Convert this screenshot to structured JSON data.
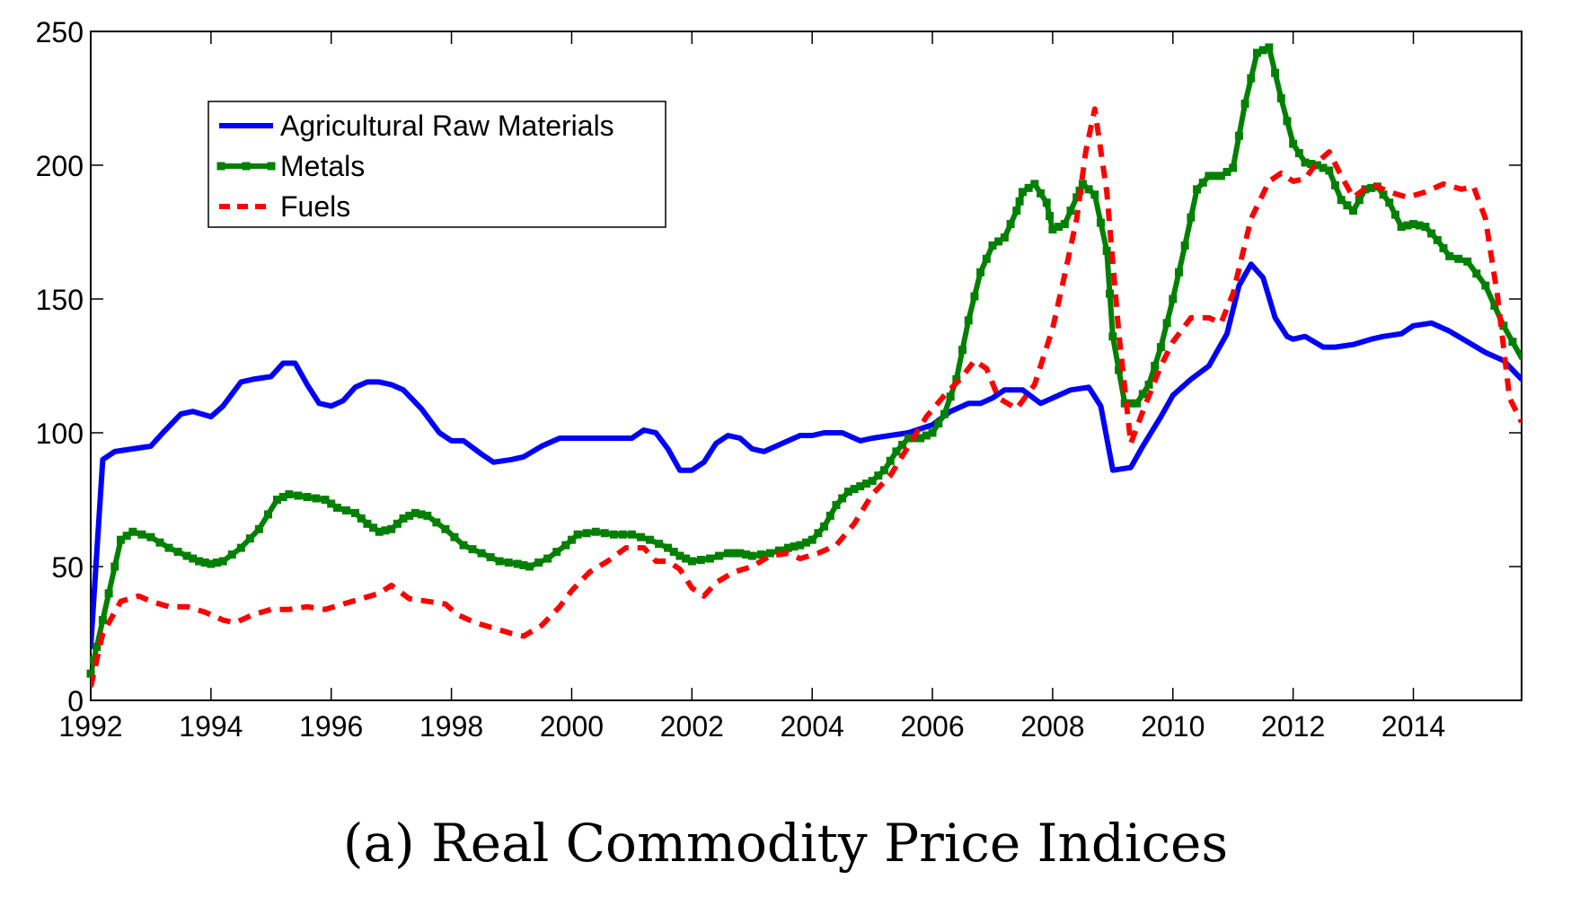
{
  "caption": "(a) Real Commodity Price Indices",
  "chart_data": {
    "type": "line",
    "xlim": [
      1992,
      2015.8
    ],
    "ylim": [
      0,
      250
    ],
    "grid": false,
    "legend_position": "top-left",
    "x_ticks": [
      "1992",
      "1994",
      "1996",
      "1998",
      "2000",
      "2002",
      "2004",
      "2006",
      "2008",
      "2010",
      "2012",
      "2014"
    ],
    "y_ticks": [
      "0",
      "50",
      "100",
      "150",
      "200",
      "250"
    ],
    "series": [
      {
        "name": "Agricultural Raw Materials",
        "color": "#0000ff",
        "style": "solid",
        "x": [
          1992.0,
          1992.2,
          1992.4,
          1992.7,
          1993.0,
          1993.2,
          1993.5,
          1993.7,
          1994.0,
          1994.2,
          1994.5,
          1994.7,
          1995.0,
          1995.2,
          1995.4,
          1995.6,
          1995.8,
          1996.0,
          1996.2,
          1996.4,
          1996.6,
          1996.8,
          1997.0,
          1997.2,
          1997.5,
          1997.8,
          1998.0,
          1998.2,
          1998.5,
          1998.7,
          1999.0,
          1999.2,
          1999.5,
          1999.8,
          2000.0,
          2000.5,
          2001.0,
          2001.2,
          2001.4,
          2001.6,
          2001.8,
          2002.0,
          2002.2,
          2002.4,
          2002.6,
          2002.8,
          2003.0,
          2003.2,
          2003.5,
          2003.8,
          2004.0,
          2004.2,
          2004.5,
          2004.8,
          2005.0,
          2005.3,
          2005.6,
          2006.0,
          2006.3,
          2006.6,
          2006.8,
          2007.0,
          2007.2,
          2007.5,
          2007.8,
          2008.0,
          2008.3,
          2008.6,
          2008.8,
          2009.0,
          2009.3,
          2009.5,
          2009.8,
          2010.0,
          2010.3,
          2010.6,
          2010.9,
          2011.1,
          2011.3,
          2011.5,
          2011.7,
          2011.9,
          2012.0,
          2012.2,
          2012.5,
          2012.7,
          2013.0,
          2013.3,
          2013.5,
          2013.8,
          2014.0,
          2014.3,
          2014.6,
          2014.9,
          2015.2,
          2015.5,
          2015.8
        ],
        "y": [
          20,
          90,
          93,
          94,
          95,
          100,
          107,
          108,
          106,
          110,
          119,
          120,
          121,
          126,
          126,
          118,
          111,
          110,
          112,
          117,
          119,
          119,
          118,
          116,
          109,
          100,
          97,
          97,
          92,
          89,
          90,
          91,
          95,
          98,
          98,
          98,
          98,
          101,
          100,
          94,
          86,
          86,
          89,
          96,
          99,
          98,
          94,
          93,
          96,
          99,
          99,
          100,
          100,
          97,
          98,
          99,
          100,
          103,
          108,
          111,
          111,
          113,
          116,
          116,
          111,
          113,
          116,
          117,
          110,
          86,
          87,
          95,
          106,
          114,
          120,
          125,
          137,
          155,
          163,
          158,
          143,
          136,
          135,
          136,
          132,
          132,
          133,
          135,
          136,
          137,
          140,
          141,
          138,
          134,
          130,
          127,
          120
        ]
      },
      {
        "name": "Metals",
        "color": "#008000",
        "style": "solid-markers",
        "x": [
          1992.0,
          1992.1,
          1992.3,
          1992.5,
          1992.7,
          1993.0,
          1993.3,
          1993.6,
          1993.8,
          1994.0,
          1994.2,
          1994.5,
          1994.8,
          1995.1,
          1995.3,
          1995.6,
          1995.9,
          1996.1,
          1996.4,
          1996.6,
          1996.8,
          1997.0,
          1997.2,
          1997.4,
          1997.6,
          1997.9,
          1998.2,
          1998.5,
          1998.8,
          1999.1,
          1999.3,
          1999.6,
          1999.9,
          2000.1,
          2000.4,
          2000.7,
          2001.0,
          2001.3,
          2001.6,
          2001.8,
          2002.0,
          2002.3,
          2002.6,
          2002.8,
          2003.0,
          2003.3,
          2003.6,
          2003.8,
          2004.0,
          2004.2,
          2004.4,
          2004.6,
          2004.8,
          2005.0,
          2005.2,
          2005.4,
          2005.6,
          2005.8,
          2006.0,
          2006.2,
          2006.4,
          2006.6,
          2006.8,
          2007.0,
          2007.2,
          2007.4,
          2007.5,
          2007.7,
          2007.9,
          2008.0,
          2008.2,
          2008.4,
          2008.5,
          2008.7,
          2008.9,
          2009.0,
          2009.2,
          2009.4,
          2009.6,
          2009.8,
          2010.0,
          2010.2,
          2010.4,
          2010.6,
          2010.8,
          2011.0,
          2011.2,
          2011.4,
          2011.6,
          2011.8,
          2012.0,
          2012.2,
          2012.4,
          2012.6,
          2012.8,
          2013.0,
          2013.2,
          2013.4,
          2013.6,
          2013.8,
          2014.0,
          2014.2,
          2014.4,
          2014.6,
          2014.9,
          2015.2,
          2015.5,
          2015.8
        ],
        "y": [
          10,
          20,
          40,
          60,
          63,
          61,
          57,
          54,
          52,
          51,
          52,
          57,
          64,
          75,
          77,
          76,
          75,
          72,
          70,
          66,
          63,
          64,
          68,
          70,
          69,
          64,
          58,
          55,
          52,
          51,
          50,
          53,
          58,
          62,
          63,
          62,
          62,
          60,
          57,
          54,
          52,
          53,
          55,
          55,
          54,
          55,
          57,
          58,
          60,
          65,
          73,
          78,
          80,
          82,
          86,
          93,
          98,
          98,
          100,
          107,
          120,
          142,
          160,
          170,
          173,
          183,
          190,
          193,
          186,
          176,
          178,
          188,
          193,
          189,
          168,
          136,
          111,
          111,
          118,
          132,
          150,
          170,
          191,
          196,
          196,
          199,
          223,
          242,
          244,
          225,
          208,
          201,
          200,
          198,
          187,
          183,
          191,
          192,
          186,
          177,
          178,
          177,
          172,
          166,
          164,
          155,
          140,
          128
        ]
      },
      {
        "name": "Fuels",
        "color": "#ff0000",
        "style": "dashed",
        "x": [
          1992.0,
          1992.2,
          1992.5,
          1992.8,
          1993.0,
          1993.3,
          1993.6,
          1993.9,
          1994.2,
          1994.4,
          1994.7,
          1995.0,
          1995.3,
          1995.6,
          1995.9,
          1996.2,
          1996.5,
          1996.8,
          1997.0,
          1997.3,
          1997.6,
          1997.9,
          1998.1,
          1998.4,
          1998.7,
          1999.0,
          1999.2,
          1999.5,
          1999.8,
          2000.0,
          2000.3,
          2000.6,
          2000.9,
          2001.2,
          2001.4,
          2001.6,
          2001.8,
          2002.0,
          2002.2,
          2002.4,
          2002.7,
          2003.0,
          2003.3,
          2003.6,
          2003.8,
          2004.1,
          2004.4,
          2004.7,
          2005.0,
          2005.3,
          2005.6,
          2005.9,
          2006.2,
          2006.5,
          2006.7,
          2006.9,
          2007.1,
          2007.4,
          2007.7,
          2008.0,
          2008.2,
          2008.4,
          2008.55,
          2008.7,
          2008.9,
          2009.1,
          2009.3,
          2009.5,
          2009.8,
          2010.0,
          2010.3,
          2010.6,
          2010.8,
          2011.0,
          2011.3,
          2011.6,
          2011.8,
          2012.0,
          2012.2,
          2012.4,
          2012.6,
          2012.8,
          2013.0,
          2013.3,
          2013.6,
          2013.9,
          2014.2,
          2014.5,
          2014.8,
          2015.0,
          2015.2,
          2015.4,
          2015.6,
          2015.8
        ],
        "y": [
          5,
          25,
          37,
          39,
          37,
          35,
          35,
          33,
          30,
          29,
          32,
          34,
          34,
          35,
          34,
          36,
          38,
          40,
          43,
          38,
          37,
          36,
          32,
          29,
          27,
          25,
          24,
          28,
          35,
          41,
          48,
          52,
          57,
          57,
          52,
          52,
          49,
          42,
          39,
          44,
          48,
          50,
          54,
          55,
          53,
          55,
          58,
          66,
          77,
          84,
          95,
          106,
          114,
          121,
          127,
          124,
          113,
          109,
          118,
          139,
          159,
          180,
          205,
          221,
          190,
          137,
          96,
          108,
          125,
          134,
          143,
          143,
          141,
          152,
          180,
          194,
          197,
          194,
          195,
          201,
          205,
          196,
          188,
          193,
          190,
          188,
          190,
          193,
          191,
          192,
          180,
          151,
          113,
          104
        ]
      }
    ]
  }
}
